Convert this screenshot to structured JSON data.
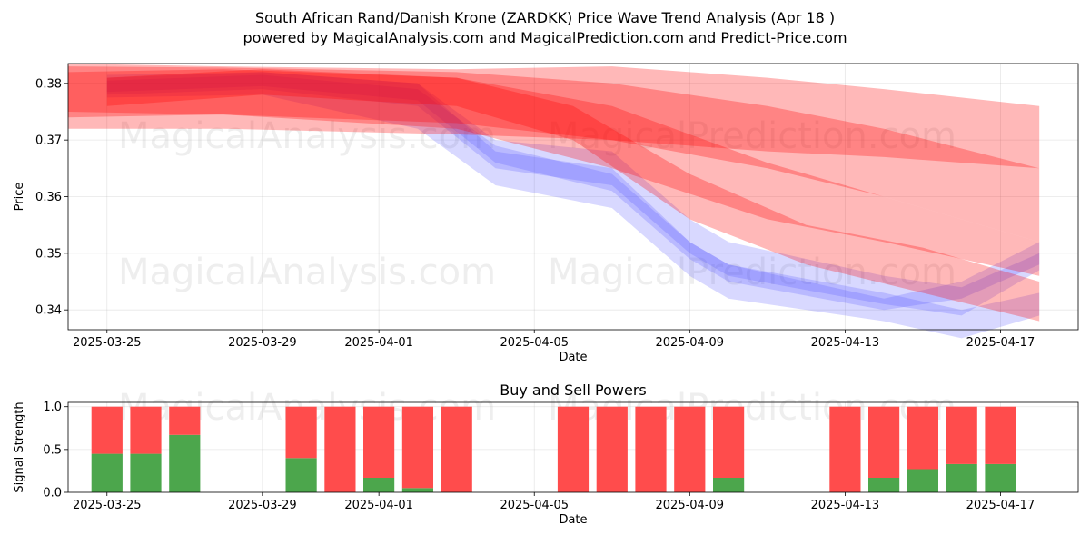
{
  "title_line1": "South African Rand/Danish Krone (ZARDKK) Price Wave Trend Analysis (Apr 18 )",
  "title_line2": "powered by MagicalAnalysis.com and MagicalPrediction.com and Predict-Price.com",
  "watermarks": [
    "MagicalAnalysis.com",
    "MagicalPrediction.com"
  ],
  "colors": {
    "sell": "#ff0000",
    "buy_wave": "#4d4dff",
    "buy_bar": "#4ca64c",
    "sell_bar": "#ff4c4c"
  },
  "chart_data": [
    {
      "type": "area",
      "title": "",
      "xlabel": "Date",
      "ylabel": "Price",
      "xlim": [
        "2025-03-24",
        "2025-04-19"
      ],
      "ylim": [
        0.3365,
        0.3835
      ],
      "x_ticks": [
        "2025-03-25",
        "2025-03-29",
        "2025-04-01",
        "2025-04-05",
        "2025-04-09",
        "2025-04-13",
        "2025-04-17"
      ],
      "y_ticks": [
        0.34,
        0.35,
        0.36,
        0.37,
        0.38
      ],
      "grid": true,
      "series": [
        {
          "color": "red",
          "x": [
            "2025-03-24",
            "2025-03-28",
            "2025-04-03",
            "2025-04-07",
            "2025-04-11",
            "2025-04-14",
            "2025-04-18"
          ],
          "upper": [
            0.3835,
            0.383,
            0.3825,
            0.383,
            0.381,
            0.379,
            0.376
          ],
          "lower": [
            0.372,
            0.372,
            0.371,
            0.37,
            0.368,
            0.367,
            0.365
          ]
        },
        {
          "color": "red",
          "x": [
            "2025-03-24",
            "2025-03-28",
            "2025-04-03",
            "2025-04-07",
            "2025-04-11",
            "2025-04-14",
            "2025-04-18"
          ],
          "upper": [
            0.383,
            0.3828,
            0.382,
            0.38,
            0.376,
            0.372,
            0.365
          ],
          "lower": [
            0.375,
            0.3745,
            0.373,
            0.37,
            0.365,
            0.36,
            0.352
          ]
        },
        {
          "color": "red",
          "x": [
            "2025-03-24",
            "2025-03-28",
            "2025-04-03",
            "2025-04-07",
            "2025-04-11",
            "2025-04-14",
            "2025-04-18"
          ],
          "upper": [
            0.382,
            0.3825,
            0.381,
            0.376,
            0.366,
            0.36,
            0.352
          ],
          "lower": [
            0.374,
            0.3745,
            0.372,
            0.365,
            0.356,
            0.352,
            0.346
          ]
        },
        {
          "color": "red",
          "x": [
            "2025-03-25",
            "2025-03-29",
            "2025-04-03",
            "2025-04-06",
            "2025-04-09",
            "2025-04-12",
            "2025-04-15",
            "2025-04-18"
          ],
          "upper": [
            0.381,
            0.3825,
            0.381,
            0.376,
            0.364,
            0.355,
            0.351,
            0.345
          ],
          "lower": [
            0.376,
            0.378,
            0.376,
            0.37,
            0.356,
            0.348,
            0.343,
            0.338
          ]
        },
        {
          "color": "blue",
          "x": [
            "2025-03-25",
            "2025-03-29",
            "2025-04-02",
            "2025-04-04",
            "2025-04-07",
            "2025-04-09",
            "2025-04-10",
            "2025-04-14",
            "2025-04-16",
            "2025-04-18"
          ],
          "upper": [
            0.3815,
            0.382,
            0.38,
            0.368,
            0.365,
            0.352,
            0.348,
            0.343,
            0.34,
            0.343
          ],
          "lower": [
            0.3775,
            0.378,
            0.372,
            0.362,
            0.358,
            0.346,
            0.342,
            0.338,
            0.335,
            0.339
          ]
        },
        {
          "color": "blue",
          "x": [
            "2025-03-25",
            "2025-03-29",
            "2025-04-02",
            "2025-04-04",
            "2025-04-07",
            "2025-04-09",
            "2025-04-10",
            "2025-04-14",
            "2025-04-16",
            "2025-04-18"
          ],
          "upper": [
            0.381,
            0.382,
            0.38,
            0.37,
            0.368,
            0.356,
            0.352,
            0.346,
            0.344,
            0.35
          ],
          "lower": [
            0.378,
            0.379,
            0.376,
            0.365,
            0.362,
            0.35,
            0.346,
            0.341,
            0.339,
            0.347
          ]
        },
        {
          "color": "blue",
          "x": [
            "2025-03-25",
            "2025-03-29",
            "2025-04-02",
            "2025-04-04",
            "2025-04-07",
            "2025-04-09",
            "2025-04-10",
            "2025-04-14",
            "2025-04-16",
            "2025-04-18"
          ],
          "upper": [
            0.3805,
            0.3815,
            0.379,
            0.369,
            0.364,
            0.352,
            0.348,
            0.342,
            0.345,
            0.352
          ],
          "lower": [
            0.3785,
            0.3795,
            0.377,
            0.366,
            0.361,
            0.349,
            0.345,
            0.34,
            0.342,
            0.348
          ]
        }
      ]
    },
    {
      "type": "bar",
      "title": "Buy and Sell Powers",
      "xlabel": "Date",
      "ylabel": "Signal Strength",
      "xlim": [
        "2025-03-24",
        "2025-04-19"
      ],
      "ylim": [
        0,
        1.05
      ],
      "x_ticks": [
        "2025-03-25",
        "2025-03-29",
        "2025-04-01",
        "2025-04-05",
        "2025-04-09",
        "2025-04-13",
        "2025-04-17"
      ],
      "y_ticks": [
        "0.0",
        "0.5",
        "1.0"
      ],
      "categories": [
        "2025-03-25",
        "2025-03-26",
        "2025-03-27",
        "2025-03-30",
        "2025-03-31",
        "2025-04-01",
        "2025-04-02",
        "2025-04-03",
        "2025-04-06",
        "2025-04-07",
        "2025-04-08",
        "2025-04-09",
        "2025-04-10",
        "2025-04-13",
        "2025-04-14",
        "2025-04-15",
        "2025-04-16",
        "2025-04-17"
      ],
      "series": [
        {
          "name": "Buy",
          "values": [
            0.45,
            0.45,
            0.67,
            0.4,
            0.0,
            0.17,
            0.05,
            0.0,
            0.0,
            0.0,
            0.0,
            0.0,
            0.17,
            0.0,
            0.17,
            0.27,
            0.33,
            0.33
          ]
        },
        {
          "name": "Sell",
          "values": [
            0.55,
            0.55,
            0.33,
            0.6,
            1.0,
            0.83,
            0.95,
            1.0,
            1.0,
            1.0,
            1.0,
            1.0,
            0.83,
            1.0,
            0.83,
            0.73,
            0.67,
            0.67
          ]
        }
      ]
    }
  ]
}
